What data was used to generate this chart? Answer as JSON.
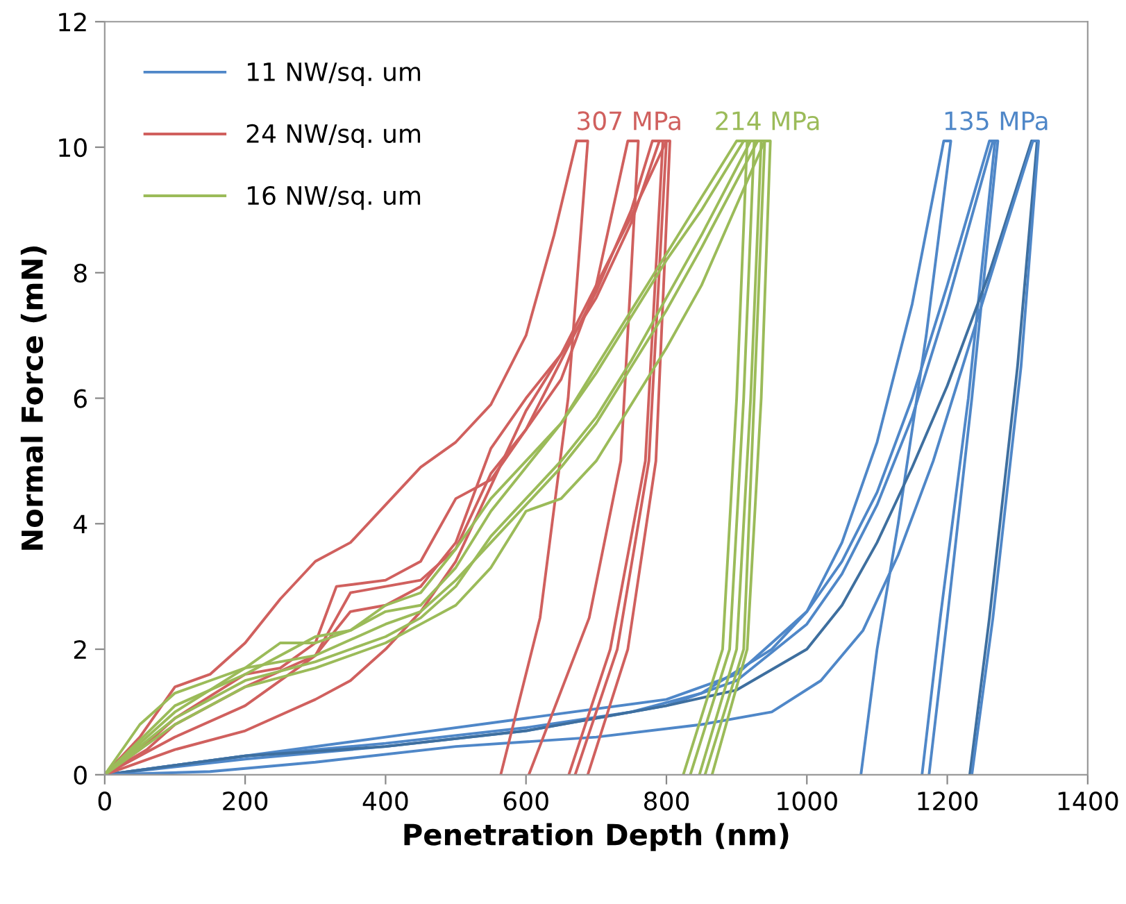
{
  "chart_data": {
    "type": "line",
    "xlabel": "Penetration Depth (nm)",
    "ylabel": "Normal Force (mN)",
    "xlim": [
      0,
      1400
    ],
    "ylim": [
      0,
      12
    ],
    "xticks": [
      0,
      200,
      400,
      600,
      800,
      1000,
      1200,
      1400
    ],
    "yticks": [
      0,
      2,
      4,
      6,
      8,
      10,
      12
    ],
    "grid": false,
    "legend": "top left",
    "marker": "none",
    "line_style": "solid",
    "annotations": [
      "307 MPa",
      "214 MPa",
      "135 MPa"
    ],
    "series": [
      {
        "name": "11 NW/sq. um",
        "color": "#4f87c8",
        "x": [
          0,
          100,
          200,
          400,
          600,
          750,
          850,
          950,
          1000,
          1050,
          1100,
          1150,
          1195,
          1205,
          1170,
          1130,
          1100,
          1077
        ],
        "values": [
          0,
          0.15,
          0.3,
          0.5,
          0.75,
          1.0,
          1.3,
          2.0,
          2.6,
          3.7,
          5.3,
          7.5,
          10.1,
          10.1,
          7,
          4,
          2,
          0
        ]
      },
      {
        "color": "#4f87c8",
        "x": [
          0,
          200,
          400,
          600,
          800,
          900,
          1000,
          1050,
          1100,
          1150,
          1200,
          1260,
          1268,
          1230,
          1190,
          1164
        ],
        "values": [
          0,
          0.3,
          0.6,
          0.9,
          1.2,
          1.6,
          2.6,
          3.4,
          4.5,
          6.0,
          7.8,
          10.1,
          10.1,
          6,
          2.5,
          0
        ]
      },
      {
        "color": "#4f87c8",
        "x": [
          0,
          200,
          400,
          600,
          800,
          900,
          1000,
          1050,
          1100,
          1150,
          1200,
          1265,
          1272,
          1235,
          1200,
          1174
        ],
        "values": [
          0,
          0.25,
          0.45,
          0.7,
          1.1,
          1.5,
          2.4,
          3.2,
          4.3,
          5.7,
          7.5,
          10.1,
          10.1,
          6,
          2.5,
          0
        ]
      },
      {
        "color": "#3e6f9f",
        "x": [
          0,
          200,
          400,
          600,
          800,
          900,
          1000,
          1050,
          1100,
          1150,
          1200,
          1260,
          1320,
          1328,
          1300,
          1260,
          1232
        ],
        "values": [
          0,
          0.3,
          0.45,
          0.7,
          1.1,
          1.35,
          2.0,
          2.7,
          3.7,
          4.9,
          6.2,
          8,
          10.1,
          10.1,
          6.5,
          2.5,
          0
        ]
      },
      {
        "color": "#4f87c8",
        "x": [
          0,
          150,
          300,
          500,
          700,
          850,
          950,
          1020,
          1080,
          1130,
          1180,
          1230,
          1280,
          1322,
          1330,
          1305,
          1265,
          1235
        ],
        "values": [
          0,
          0.05,
          0.2,
          0.45,
          0.6,
          0.8,
          1.0,
          1.5,
          2.3,
          3.5,
          5,
          6.8,
          8.6,
          10.1,
          10.1,
          6.5,
          2.5,
          0
        ]
      },
      {
        "name": "24 NW/sq. um",
        "color": "#d0605e",
        "x": [
          0,
          50,
          100,
          150,
          200,
          250,
          300,
          350,
          400,
          450,
          500,
          550,
          600,
          640,
          672,
          688,
          660,
          620,
          564
        ],
        "values": [
          0,
          0.6,
          1.4,
          1.6,
          2.1,
          2.8,
          3.4,
          3.7,
          4.3,
          4.9,
          5.3,
          5.9,
          7.0,
          8.6,
          10.1,
          10.1,
          6,
          2.5,
          0
        ]
      },
      {
        "color": "#d0605e",
        "x": [
          0,
          50,
          100,
          200,
          250,
          300,
          330,
          400,
          450,
          500,
          550,
          600,
          650,
          700,
          745,
          760,
          735,
          690,
          604
        ],
        "values": [
          0,
          0.4,
          0.9,
          1.6,
          1.7,
          2.1,
          3.0,
          3.1,
          3.4,
          4.4,
          4.7,
          5.5,
          6.3,
          7.8,
          10.1,
          10.1,
          5,
          2.5,
          0
        ]
      },
      {
        "color": "#d0605e",
        "x": [
          0,
          60,
          100,
          200,
          300,
          330,
          350,
          400,
          450,
          500,
          550,
          600,
          650,
          700,
          750,
          780,
          795,
          770,
          720,
          661
        ],
        "values": [
          0,
          0.4,
          0.8,
          1.4,
          1.9,
          2.5,
          2.9,
          3.0,
          3.1,
          3.6,
          4.8,
          5.5,
          6.6,
          7.7,
          9.0,
          10.1,
          10.1,
          5,
          2,
          0
        ]
      },
      {
        "color": "#d0605e",
        "x": [
          0,
          100,
          200,
          300,
          350,
          400,
          450,
          500,
          550,
          600,
          650,
          700,
          750,
          790,
          800,
          775,
          730,
          670
        ],
        "values": [
          0,
          0.6,
          1.1,
          1.9,
          2.6,
          2.7,
          3.0,
          3.7,
          5.2,
          6.0,
          6.7,
          7.6,
          8.8,
          10.1,
          10.1,
          5,
          2,
          0
        ]
      },
      {
        "color": "#d0605e",
        "x": [
          0,
          100,
          200,
          300,
          350,
          400,
          450,
          500,
          550,
          600,
          650,
          700,
          750,
          800,
          805,
          785,
          745,
          688
        ],
        "values": [
          0,
          0.4,
          0.7,
          1.2,
          1.5,
          2.0,
          2.6,
          3.4,
          4.6,
          5.8,
          6.7,
          7.8,
          8.9,
          10.1,
          10.1,
          5,
          2,
          0
        ]
      },
      {
        "name": "16 NW/sq. um",
        "color": "#9bbb59",
        "x": [
          0,
          50,
          100,
          150,
          200,
          250,
          300,
          350,
          400,
          450,
          500,
          550,
          600,
          650,
          700,
          750,
          800,
          850,
          900,
          915,
          900,
          880,
          824
        ],
        "values": [
          0,
          0.8,
          1.3,
          1.5,
          1.7,
          2.1,
          2.1,
          2.3,
          2.6,
          2.7,
          3.3,
          4.2,
          4.9,
          5.6,
          6.5,
          7.4,
          8.3,
          9.2,
          10.1,
          10.1,
          6,
          2,
          0
        ]
      },
      {
        "color": "#9bbb59",
        "x": [
          0,
          100,
          200,
          300,
          350,
          400,
          450,
          500,
          550,
          600,
          650,
          700,
          750,
          800,
          850,
          910,
          925,
          910,
          890,
          834
        ],
        "values": [
          0,
          1.1,
          1.6,
          2.2,
          2.3,
          2.7,
          2.9,
          3.6,
          4.4,
          5.0,
          5.6,
          6.4,
          7.3,
          8.2,
          9.0,
          10.1,
          10.1,
          6,
          2,
          0
        ]
      },
      {
        "color": "#9bbb59",
        "x": [
          0,
          100,
          200,
          300,
          400,
          450,
          500,
          550,
          600,
          650,
          700,
          750,
          800,
          850,
          920,
          935,
          920,
          900,
          847
        ],
        "values": [
          0,
          0.9,
          1.5,
          1.8,
          2.2,
          2.5,
          3.0,
          3.8,
          4.4,
          5.0,
          5.7,
          6.6,
          7.6,
          8.6,
          10.1,
          10.1,
          6,
          2,
          0
        ]
      },
      {
        "color": "#9bbb59",
        "x": [
          0,
          100,
          200,
          300,
          400,
          450,
          500,
          550,
          600,
          650,
          700,
          750,
          800,
          850,
          930,
          940,
          925,
          910,
          855
        ],
        "values": [
          0,
          1.0,
          1.7,
          1.9,
          2.4,
          2.6,
          3.1,
          3.7,
          4.3,
          4.9,
          5.6,
          6.5,
          7.4,
          8.4,
          10.1,
          10.1,
          6,
          2,
          0
        ]
      },
      {
        "color": "#9bbb59",
        "x": [
          0,
          100,
          200,
          300,
          400,
          450,
          500,
          550,
          600,
          650,
          700,
          750,
          800,
          850,
          940,
          948,
          935,
          915,
          865
        ],
        "values": [
          0,
          0.8,
          1.4,
          1.7,
          2.1,
          2.4,
          2.7,
          3.3,
          4.2,
          4.4,
          5.0,
          5.9,
          6.8,
          7.8,
          10.1,
          10.1,
          6,
          2,
          0
        ]
      }
    ]
  }
}
